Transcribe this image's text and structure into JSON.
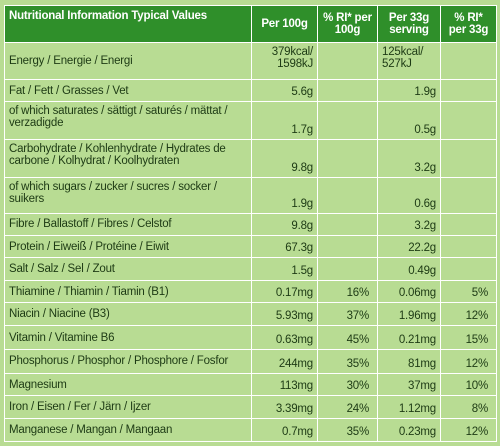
{
  "header": {
    "title": "Nutritional Information Typical Values",
    "col_per100": "Per 100g",
    "col_ri100": "% RI* per 100g",
    "col_per33": "Per 33g serving",
    "col_ri33": "% RI* per 33g"
  },
  "rows": [
    {
      "label": "Energy / Energie / Energi",
      "per100": "379kcal/ 1598kJ",
      "ri100": "",
      "per33": "125kcal/ 527kJ",
      "ri33": ""
    },
    {
      "label": "Fat / Fett / Grasses / Vet",
      "per100": "5.6g",
      "ri100": "",
      "per33": "1.9g",
      "ri33": ""
    },
    {
      "label": "of which saturates / sättigt / saturés / mättat / verzadigde",
      "per100": "1.7g",
      "ri100": "",
      "per33": "0.5g",
      "ri33": ""
    },
    {
      "label": "Carbohydrate / Kohlenhydrate / Hydrates de carbone / Kolhydrat / Koolhydraten",
      "per100": "9.8g",
      "ri100": "",
      "per33": "3.2g",
      "ri33": ""
    },
    {
      "label": "of which sugars / zucker / sucres / socker / suikers",
      "per100": "1.9g",
      "ri100": "",
      "per33": "0.6g",
      "ri33": ""
    },
    {
      "label": "Fibre / Ballastoff / Fibres / Celstof",
      "per100": "9.8g",
      "ri100": "",
      "per33": "3.2g",
      "ri33": ""
    },
    {
      "label": "Protein / Eiweiß / Protéine / Eiwit",
      "per100": "67.3g",
      "ri100": "",
      "per33": "22.2g",
      "ri33": ""
    },
    {
      "label": "Salt / Salz / Sel / Zout",
      "per100": "1.5g",
      "ri100": "",
      "per33": "0.49g",
      "ri33": ""
    },
    {
      "label": "Thiamine / Thiamin / Tiamin (B1)",
      "per100": "0.17mg",
      "ri100": "16%",
      "per33": "0.06mg",
      "ri33": "5%"
    },
    {
      "label": "Niacin / Niacine (B3)",
      "per100": "5.93mg",
      "ri100": "37%",
      "per33": "1.96mg",
      "ri33": "12%"
    },
    {
      "label": "Vitamin / Vitamine B6",
      "per100": "0.63mg",
      "ri100": "45%",
      "per33": "0.21mg",
      "ri33": "15%"
    },
    {
      "label": "Phosphorus / Phosphor / Phosphore / Fosfor",
      "per100": "244mg",
      "ri100": "35%",
      "per33": "81mg",
      "ri33": "12%"
    },
    {
      "label": "Magnesium",
      "per100": "113mg",
      "ri100": "30%",
      "per33": "37mg",
      "ri33": "10%"
    },
    {
      "label": "Iron / Eisen / Fer / Järn / Ijzer",
      "per100": "3.39mg",
      "ri100": "24%",
      "per33": "1.12mg",
      "ri33": "8%"
    },
    {
      "label": "Manganese / Mangan / Mangaan",
      "per100": "0.7mg",
      "ri100": "35%",
      "per33": "0.23mg",
      "ri33": "12%"
    }
  ]
}
